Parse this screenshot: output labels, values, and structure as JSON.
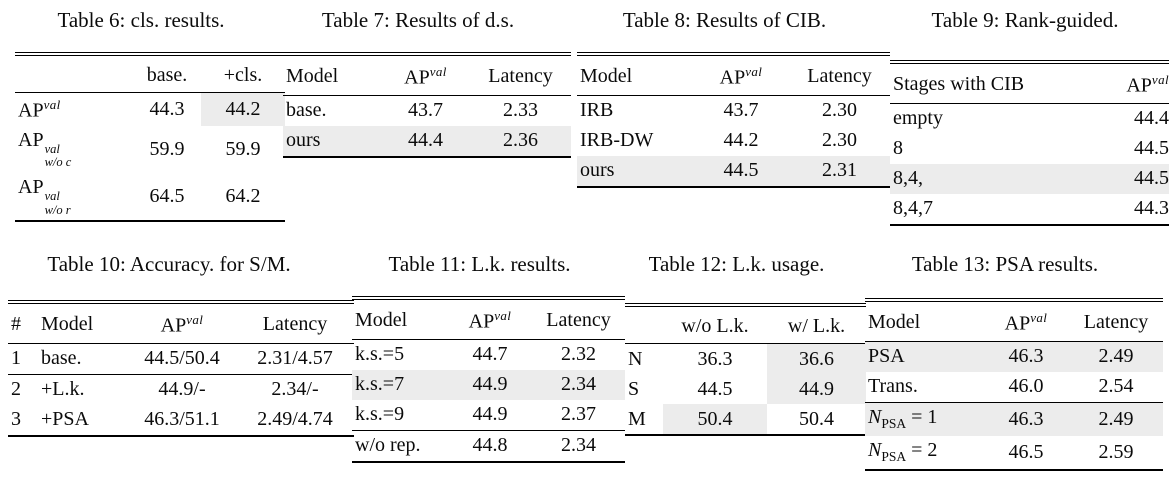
{
  "page": {
    "background_color": "#ffffff",
    "text_color": "#0b0b0b",
    "highlight_color": "#ececec"
  },
  "tables": [
    {
      "id": "table-6",
      "caption": "Table 6: cls. results.",
      "header": [
        "",
        "base.",
        "+cls."
      ],
      "align": [
        "left",
        "center",
        "center"
      ],
      "rows": [
        {
          "cells": [
            "AP^{val}",
            "44.3",
            "44.2"
          ]
        },
        {
          "cells": [
            "AP^{val}_{w/o c}",
            "59.9",
            "59.9"
          ]
        },
        {
          "cells": [
            "AP^{val}_{w/o r}",
            "64.5",
            "64.2"
          ]
        }
      ],
      "highlight_cells": [
        [
          0,
          2
        ]
      ],
      "midrules_after": []
    },
    {
      "id": "table-7",
      "caption": "Table 7: Results of d.s.",
      "header": [
        "Model",
        "AP^{val}",
        "Latency"
      ],
      "align": [
        "left",
        "center",
        "center"
      ],
      "rows": [
        {
          "cells": [
            "base.",
            "43.7",
            "2.33"
          ]
        },
        {
          "cells": [
            "ours",
            "44.4",
            "2.36"
          ],
          "highlight": true
        }
      ],
      "highlight_cells": [],
      "midrules_after": []
    },
    {
      "id": "table-8",
      "caption": "Table 8: Results of CIB.",
      "header": [
        "Model",
        "AP^{val}",
        "Latency"
      ],
      "align": [
        "left",
        "center",
        "center"
      ],
      "rows": [
        {
          "cells": [
            "IRB",
            "43.7",
            "2.30"
          ]
        },
        {
          "cells": [
            "IRB-DW",
            "44.2",
            "2.30"
          ]
        },
        {
          "cells": [
            "ours",
            "44.5",
            "2.31"
          ],
          "highlight": true
        }
      ],
      "highlight_cells": [],
      "midrules_after": []
    },
    {
      "id": "table-9",
      "caption": "Table 9: Rank-guided.",
      "header": [
        "Stages with CIB",
        "AP^{val}"
      ],
      "align": [
        "left",
        "right"
      ],
      "rows": [
        {
          "cells": [
            "empty",
            "44.4"
          ]
        },
        {
          "cells": [
            "8",
            "44.5"
          ]
        },
        {
          "cells": [
            "8,4,",
            "44.5"
          ],
          "highlight": true
        },
        {
          "cells": [
            "8,4,7",
            "44.3"
          ]
        }
      ],
      "highlight_cells": [],
      "midrules_after": []
    },
    {
      "id": "table-10",
      "caption": "Table 10: Accuracy. for S/M.",
      "header": [
        "#",
        "Model",
        "AP^{val}",
        "Latency"
      ],
      "align": [
        "left",
        "left",
        "center",
        "center"
      ],
      "rows": [
        {
          "cells": [
            "1",
            "base.",
            "44.5/50.4",
            "2.31/4.57"
          ]
        },
        {
          "cells": [
            "2",
            "+L.k.",
            "44.9/-",
            "2.34/-"
          ]
        },
        {
          "cells": [
            "3",
            "+PSA",
            "46.3/51.1",
            "2.49/4.74"
          ]
        }
      ],
      "highlight_cells": [],
      "midrules_after": [
        0
      ]
    },
    {
      "id": "table-11",
      "caption": "Table 11: L.k. results.",
      "header": [
        "Model",
        "AP^{val}",
        "Latency"
      ],
      "align": [
        "left",
        "center",
        "center"
      ],
      "rows": [
        {
          "cells": [
            "k.s.=5",
            "44.7",
            "2.32"
          ]
        },
        {
          "cells": [
            "k.s.=7",
            "44.9",
            "2.34"
          ],
          "highlight": true
        },
        {
          "cells": [
            "k.s.=9",
            "44.9",
            "2.37"
          ]
        },
        {
          "cells": [
            "w/o rep.",
            "44.8",
            "2.34"
          ]
        }
      ],
      "highlight_cells": [],
      "midrules_after": [
        2
      ]
    },
    {
      "id": "table-12",
      "caption": "Table 12: L.k. usage.",
      "header": [
        "",
        "w/o L.k.",
        "w/ L.k."
      ],
      "align": [
        "left",
        "center",
        "center"
      ],
      "rows": [
        {
          "cells": [
            "N",
            "36.3",
            "36.6"
          ]
        },
        {
          "cells": [
            "S",
            "44.5",
            "44.9"
          ]
        },
        {
          "cells": [
            "M",
            "50.4",
            "50.4"
          ]
        }
      ],
      "highlight_cells": [
        [
          0,
          2
        ],
        [
          1,
          2
        ],
        [
          2,
          1
        ]
      ],
      "midrules_after": []
    },
    {
      "id": "table-13",
      "caption": "Table 13: PSA results.",
      "header": [
        "Model",
        "AP^{val}",
        "Latency"
      ],
      "align": [
        "left",
        "center",
        "center"
      ],
      "rows": [
        {
          "cells": [
            "PSA",
            "46.3",
            "2.49"
          ],
          "highlight": true
        },
        {
          "cells": [
            "Trans.",
            "46.0",
            "2.54"
          ]
        },
        {
          "cells": [
            "*N*~{PSA} = 1",
            "46.3",
            "2.49"
          ],
          "highlight": true
        },
        {
          "cells": [
            "*N*~{PSA} = 2",
            "46.5",
            "2.59"
          ]
        }
      ],
      "highlight_cells": [],
      "midrules_after": [
        1
      ]
    }
  ]
}
